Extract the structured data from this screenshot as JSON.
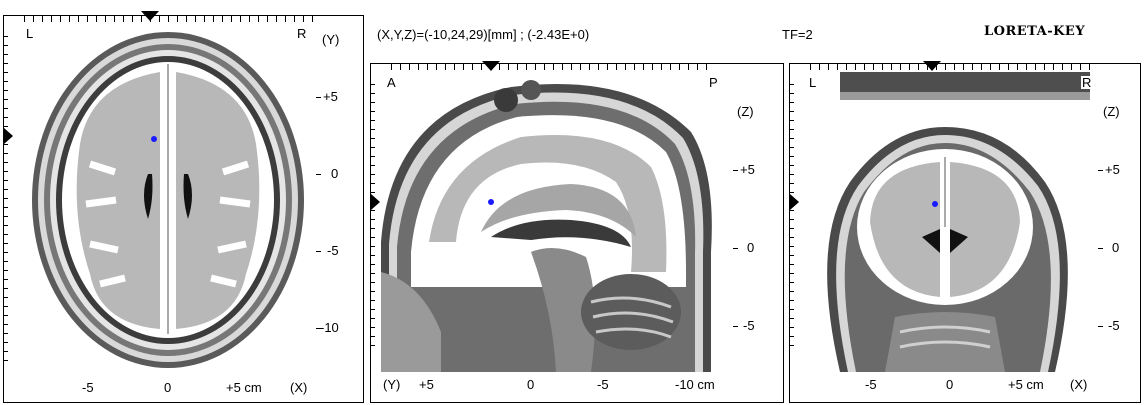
{
  "header": {
    "coords_text": "(X,Y,Z)=(-10,24,29)[mm] ; (-2.43E+0)",
    "tf_text": "TF=2",
    "brand": "LORETA-KEY"
  },
  "colors": {
    "frame": "#000000",
    "grey_matter": "#b8b8b8",
    "white_matter": "#ffffff",
    "source_dot": "#1a1aff"
  },
  "axial": {
    "corner_left": "L",
    "corner_right": "R",
    "axis_label": "(Y)",
    "y_ticks": [
      "+5",
      "0",
      "-5",
      "-10"
    ],
    "x_ticks": [
      "-5",
      "0",
      "+5 cm"
    ],
    "x_axis": "(X)"
  },
  "sagittal": {
    "corner_left": "A",
    "corner_right": "P",
    "axis_label": "(Z)",
    "y_ticks": [
      "+5",
      "0",
      "-5"
    ],
    "x_axis_label": "(Y)",
    "x_ticks": [
      "+5",
      "0",
      "-5",
      "-10 cm"
    ]
  },
  "coronal": {
    "corner_left": "L",
    "corner_right": "R",
    "axis_label": "(Z)",
    "y_ticks": [
      "+5",
      "0",
      "-5"
    ],
    "x_ticks": [
      "-5",
      "0",
      "+5 cm"
    ],
    "x_axis": "(X)"
  }
}
